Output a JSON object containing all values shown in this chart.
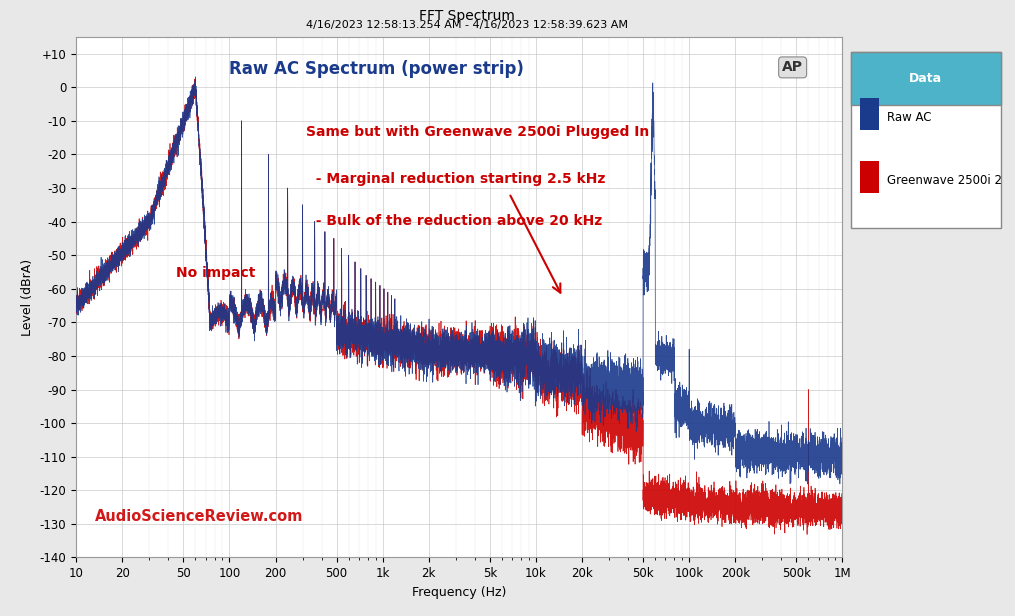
{
  "title": "FFT Spectrum",
  "subtitle": "4/16/2023 12:58:13.254 AM - 4/16/2023 12:58:39.623 AM",
  "xlabel": "Frequency (Hz)",
  "ylabel": "Level (dBrA)",
  "xlim_log": [
    10,
    1000000
  ],
  "ylim": [
    -140,
    15
  ],
  "raw_ac_color": "#1a3a8c",
  "greenwave_color": "#cc0000",
  "legend_header_bg": "#4db3c8",
  "legend_title": "Data",
  "legend_entry1": "Raw AC",
  "legend_entry2": "Greenwave 2500i 2",
  "watermark": "AudioScienceReview.com",
  "annotation_blue": "Raw AC Spectrum (power strip)",
  "annotation_red1": "Same but with Greenwave 2500i Plugged In",
  "annotation_red2": "  - Marginal reduction starting 2.5 kHz",
  "annotation_red3": "  - Bulk of the reduction above 20 kHz",
  "annotation_no_impact": "No impact",
  "ap_logo": "AP",
  "background_plot": "#ffffff",
  "background_fig": "#e8e8e8",
  "grid_color": "#c8c8c8"
}
